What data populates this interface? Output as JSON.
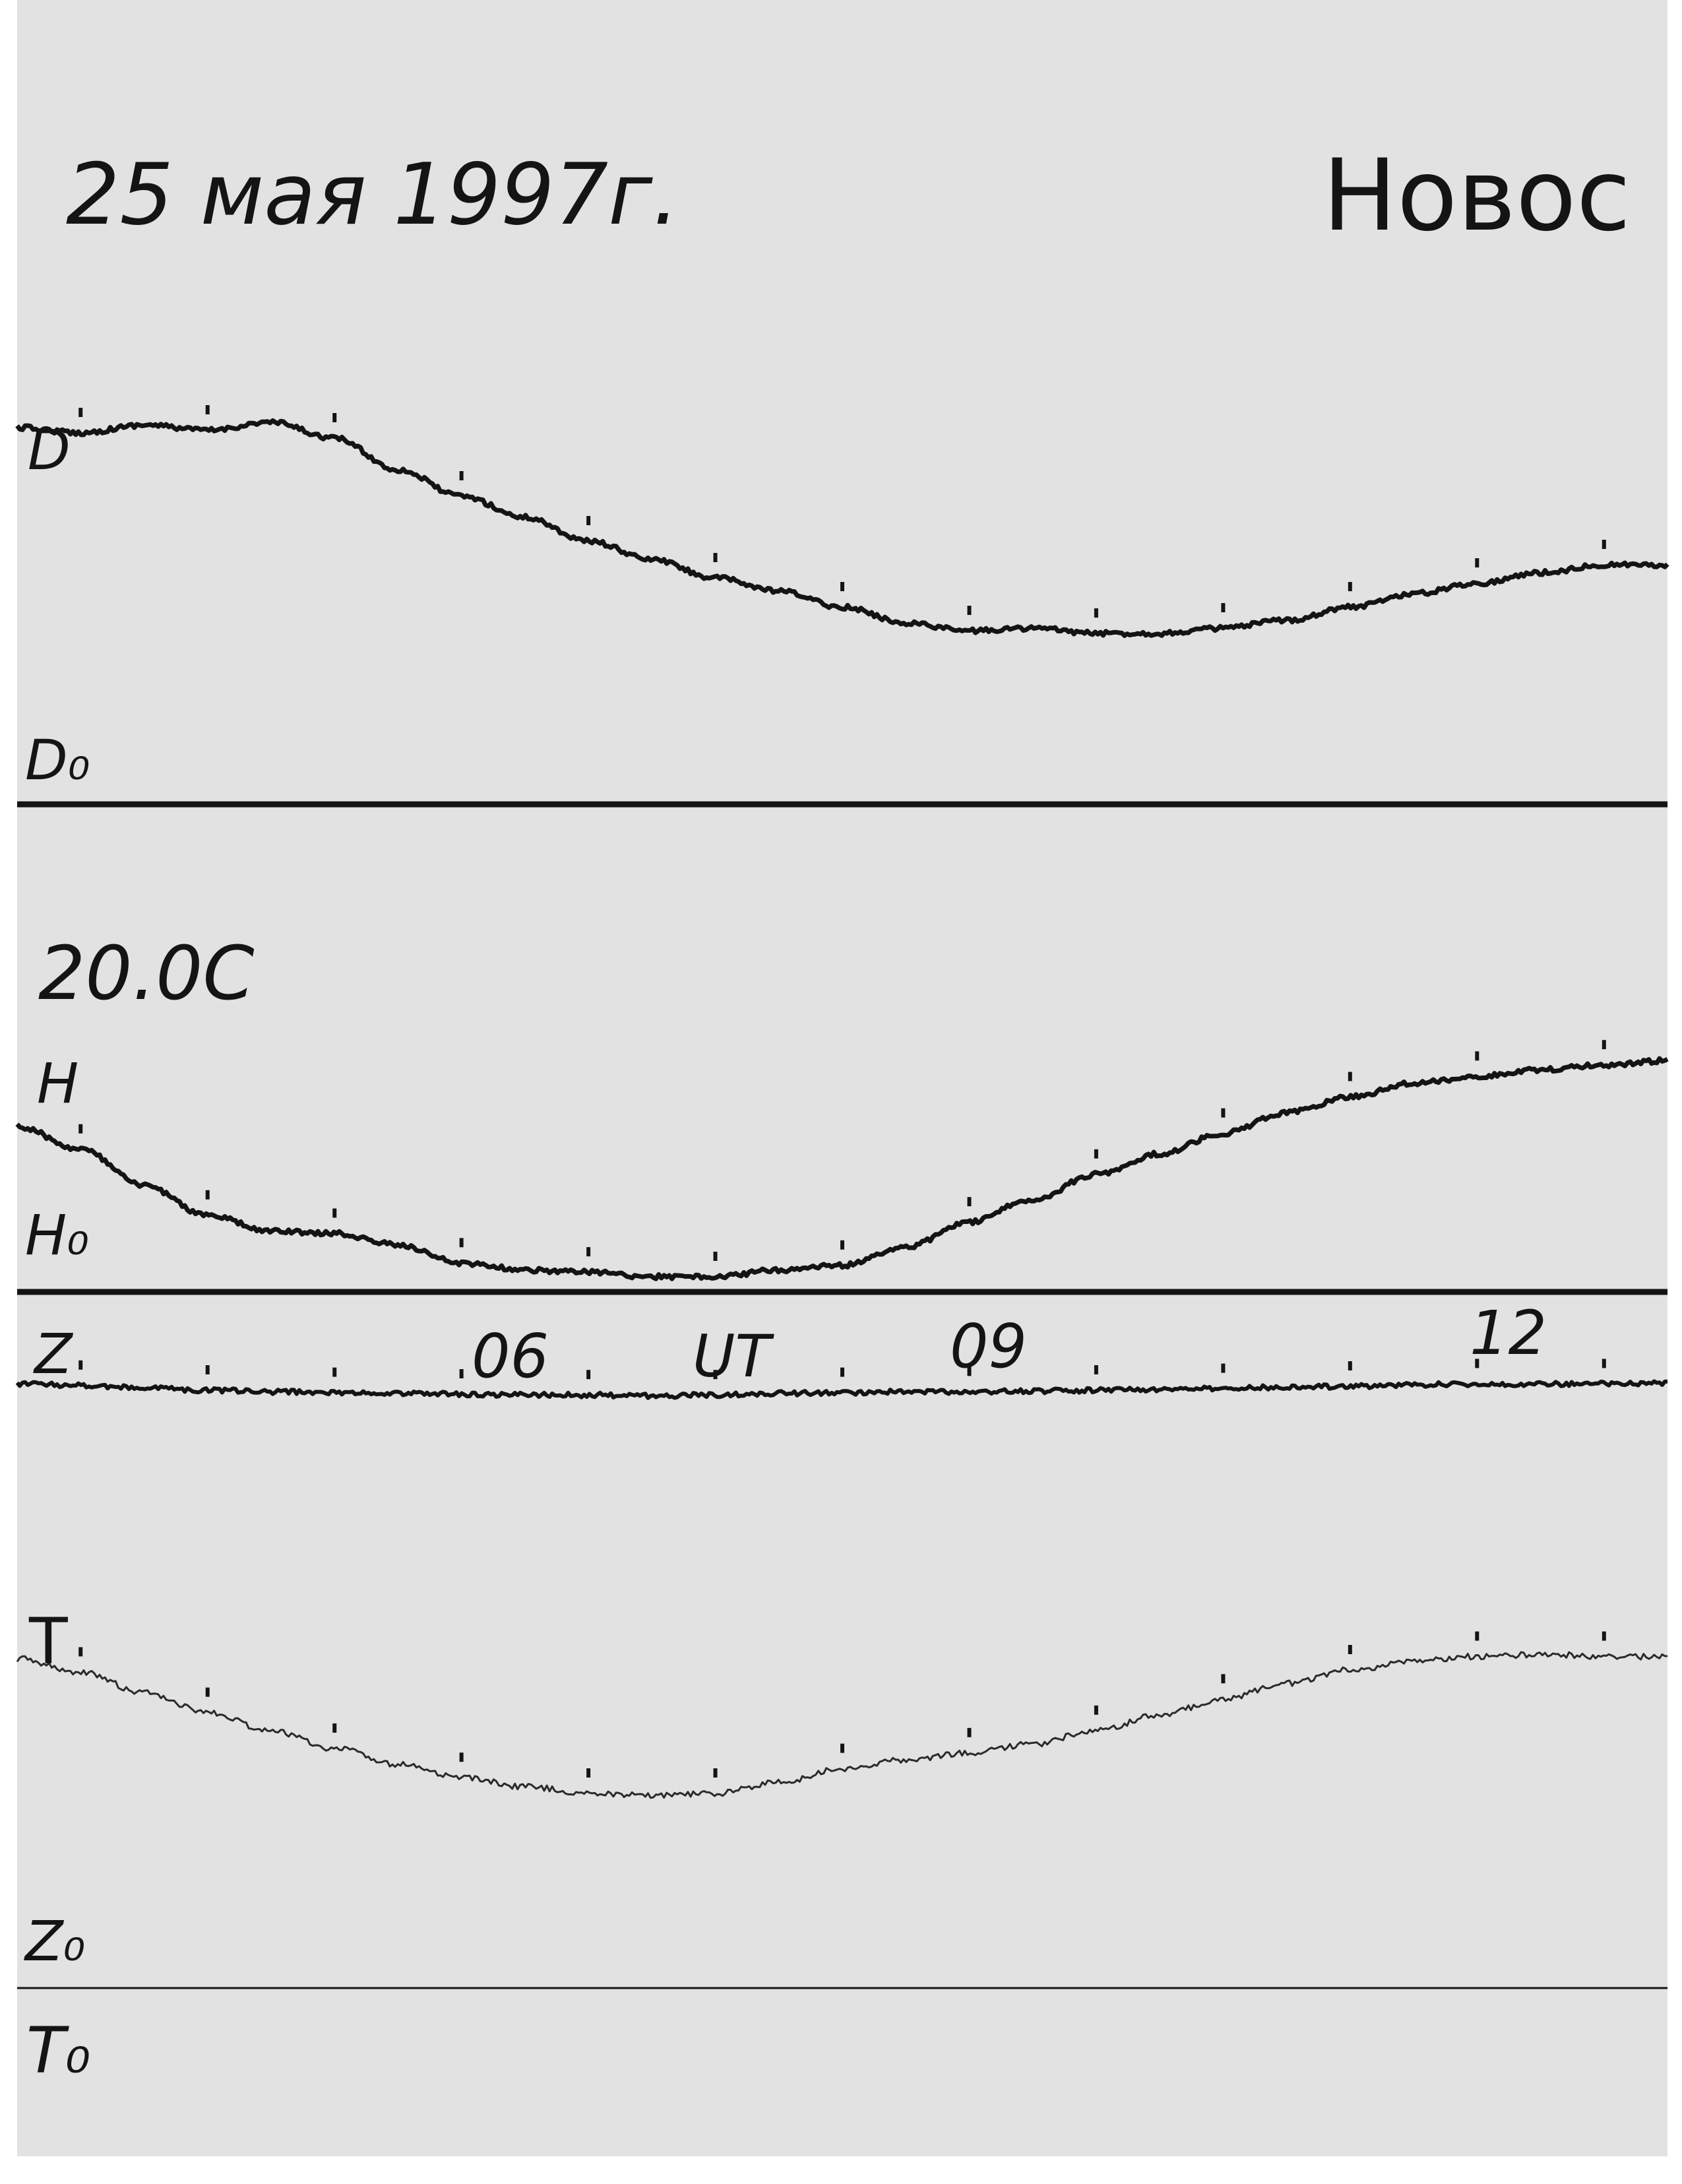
{
  "header": {
    "date": "25 мая 1997г.",
    "station": "Новос"
  },
  "temperature_note": "20.0С",
  "chart_data": {
    "type": "line",
    "title": "25 мая 1997г.",
    "subtitle": "Новос",
    "xlabel": "UT",
    "x_ticks": [
      {
        "label": "06",
        "value": 6
      },
      {
        "label": "09",
        "value": 9
      },
      {
        "label": "12",
        "value": 12
      }
    ],
    "xlim": [
      1.0,
      14.0
    ],
    "hour_marks": [
      1.5,
      2.5,
      3.5,
      4.5,
      5.5,
      6.5,
      7.5,
      8.5,
      9.5,
      10.5,
      11.5,
      12.5,
      13.5
    ],
    "series": [
      {
        "name": "D",
        "baseline_label": "D₀",
        "line_color": "#141414",
        "x": [
          1.0,
          1.5,
          2.0,
          2.5,
          3.0,
          3.5,
          4.0,
          4.5,
          5.0,
          5.5,
          6.0,
          6.5,
          7.0,
          7.5,
          8.0,
          8.5,
          9.0,
          9.5,
          10.0,
          10.5,
          11.0,
          11.5,
          12.0,
          12.5,
          13.0,
          13.5,
          14.0
        ],
        "y": [
          0.78,
          0.76,
          0.79,
          0.77,
          0.8,
          0.74,
          0.62,
          0.52,
          0.44,
          0.35,
          0.28,
          0.21,
          0.16,
          0.1,
          0.04,
          0.01,
          0.02,
          0.0,
          0.0,
          0.02,
          0.05,
          0.1,
          0.15,
          0.19,
          0.23,
          0.26,
          0.26
        ]
      },
      {
        "name": "H",
        "baseline_label": "H₀",
        "line_color": "#141414",
        "x": [
          1.0,
          1.5,
          2.0,
          2.5,
          3.0,
          3.5,
          4.0,
          4.5,
          5.0,
          5.5,
          6.0,
          6.5,
          7.0,
          7.5,
          8.0,
          8.5,
          9.0,
          9.5,
          10.0,
          10.5,
          11.0,
          11.5,
          12.0,
          12.5,
          13.0,
          13.5,
          14.0
        ],
        "y": [
          0.66,
          0.56,
          0.4,
          0.27,
          0.2,
          0.19,
          0.14,
          0.06,
          0.03,
          0.02,
          0.0,
          0.0,
          0.03,
          0.05,
          0.13,
          0.24,
          0.34,
          0.45,
          0.54,
          0.63,
          0.72,
          0.79,
          0.85,
          0.88,
          0.91,
          0.93,
          0.95
        ]
      },
      {
        "name": "Z",
        "baseline_label": "Z₀",
        "line_color": "#141414",
        "x": [
          1.0,
          1.5,
          2.0,
          2.5,
          3.0,
          3.5,
          4.0,
          4.5,
          5.0,
          5.5,
          6.0,
          6.5,
          7.0,
          7.5,
          8.0,
          8.5,
          9.0,
          9.5,
          10.0,
          10.5,
          11.0,
          11.5,
          12.0,
          12.5,
          13.0,
          13.5,
          14.0
        ],
        "y": [
          0.98,
          0.96,
          0.93,
          0.9,
          0.88,
          0.87,
          0.86,
          0.85,
          0.84,
          0.84,
          0.83,
          0.84,
          0.86,
          0.87,
          0.88,
          0.88,
          0.89,
          0.9,
          0.91,
          0.92,
          0.94,
          0.95,
          0.97,
          0.98,
          0.98,
          0.98,
          0.99
        ]
      },
      {
        "name": "T",
        "baseline_label": "T₀",
        "line_color": "#2a2a2a",
        "x": [
          1.0,
          1.5,
          2.0,
          2.5,
          3.0,
          3.5,
          4.0,
          4.5,
          5.0,
          5.5,
          6.0,
          6.5,
          7.0,
          7.5,
          8.0,
          8.5,
          9.0,
          9.5,
          10.0,
          10.5,
          11.0,
          11.5,
          12.0,
          12.5,
          13.0,
          13.5,
          14.0
        ],
        "y": [
          0.9,
          0.84,
          0.75,
          0.66,
          0.58,
          0.5,
          0.43,
          0.37,
          0.33,
          0.3,
          0.29,
          0.3,
          0.35,
          0.41,
          0.45,
          0.48,
          0.52,
          0.58,
          0.65,
          0.72,
          0.79,
          0.85,
          0.89,
          0.91,
          0.92,
          0.91,
          0.91
        ]
      }
    ],
    "grid": false,
    "legend": "none"
  },
  "colors": {
    "paper": "#e2e2e2",
    "ink": "#141414"
  }
}
